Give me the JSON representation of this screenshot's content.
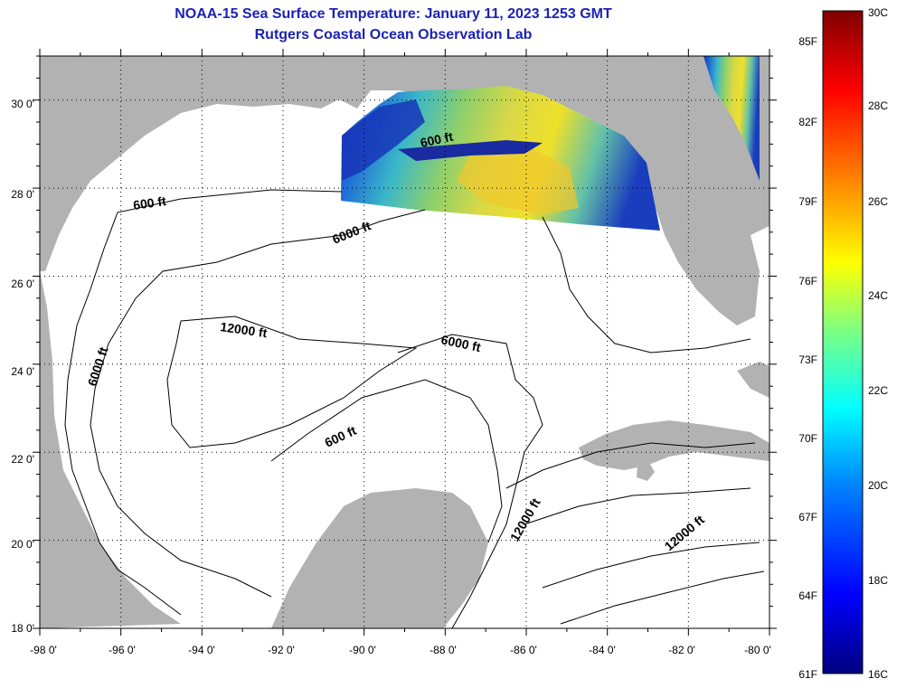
{
  "title": {
    "line1": "NOAA-15 Sea Surface Temperature:  January 11, 2023 1253 GMT",
    "line2": "Rutgers Coastal Ocean Observation Lab"
  },
  "axes": {
    "lat_ticks": [
      "30 0'",
      "28 0'",
      "26 0'",
      "24 0'",
      "22 0'",
      "20 0'",
      "18 0'"
    ],
    "lon_ticks": [
      "-98 0'",
      "-96 0'",
      "-94 0'",
      "-92 0'",
      "-90 0'",
      "-88 0'",
      "-86 0'",
      "-84 0'",
      "-82 0'",
      "-80 0'"
    ],
    "lat_range": [
      18,
      31
    ],
    "lon_range": [
      -98,
      -80
    ]
  },
  "contour_labels": [
    "600 ft",
    "6000 ft",
    "12000 ft",
    "6000 ft",
    "6000 ft",
    "600 ft",
    "600 ft",
    "12000 ft",
    "12000 ft"
  ],
  "colorbar": {
    "fahrenheit": [
      "85F",
      "82F",
      "79F",
      "76F",
      "73F",
      "70F",
      "67F",
      "64F",
      "61F"
    ],
    "celsius": [
      "30C",
      "28C",
      "26C",
      "24C",
      "22C",
      "20C",
      "18C",
      "16C"
    ],
    "range_c": [
      16,
      30
    ]
  },
  "colors": {
    "land": "#b2b2b2",
    "ocean": "#ffffff",
    "title": "#1c22b4"
  }
}
